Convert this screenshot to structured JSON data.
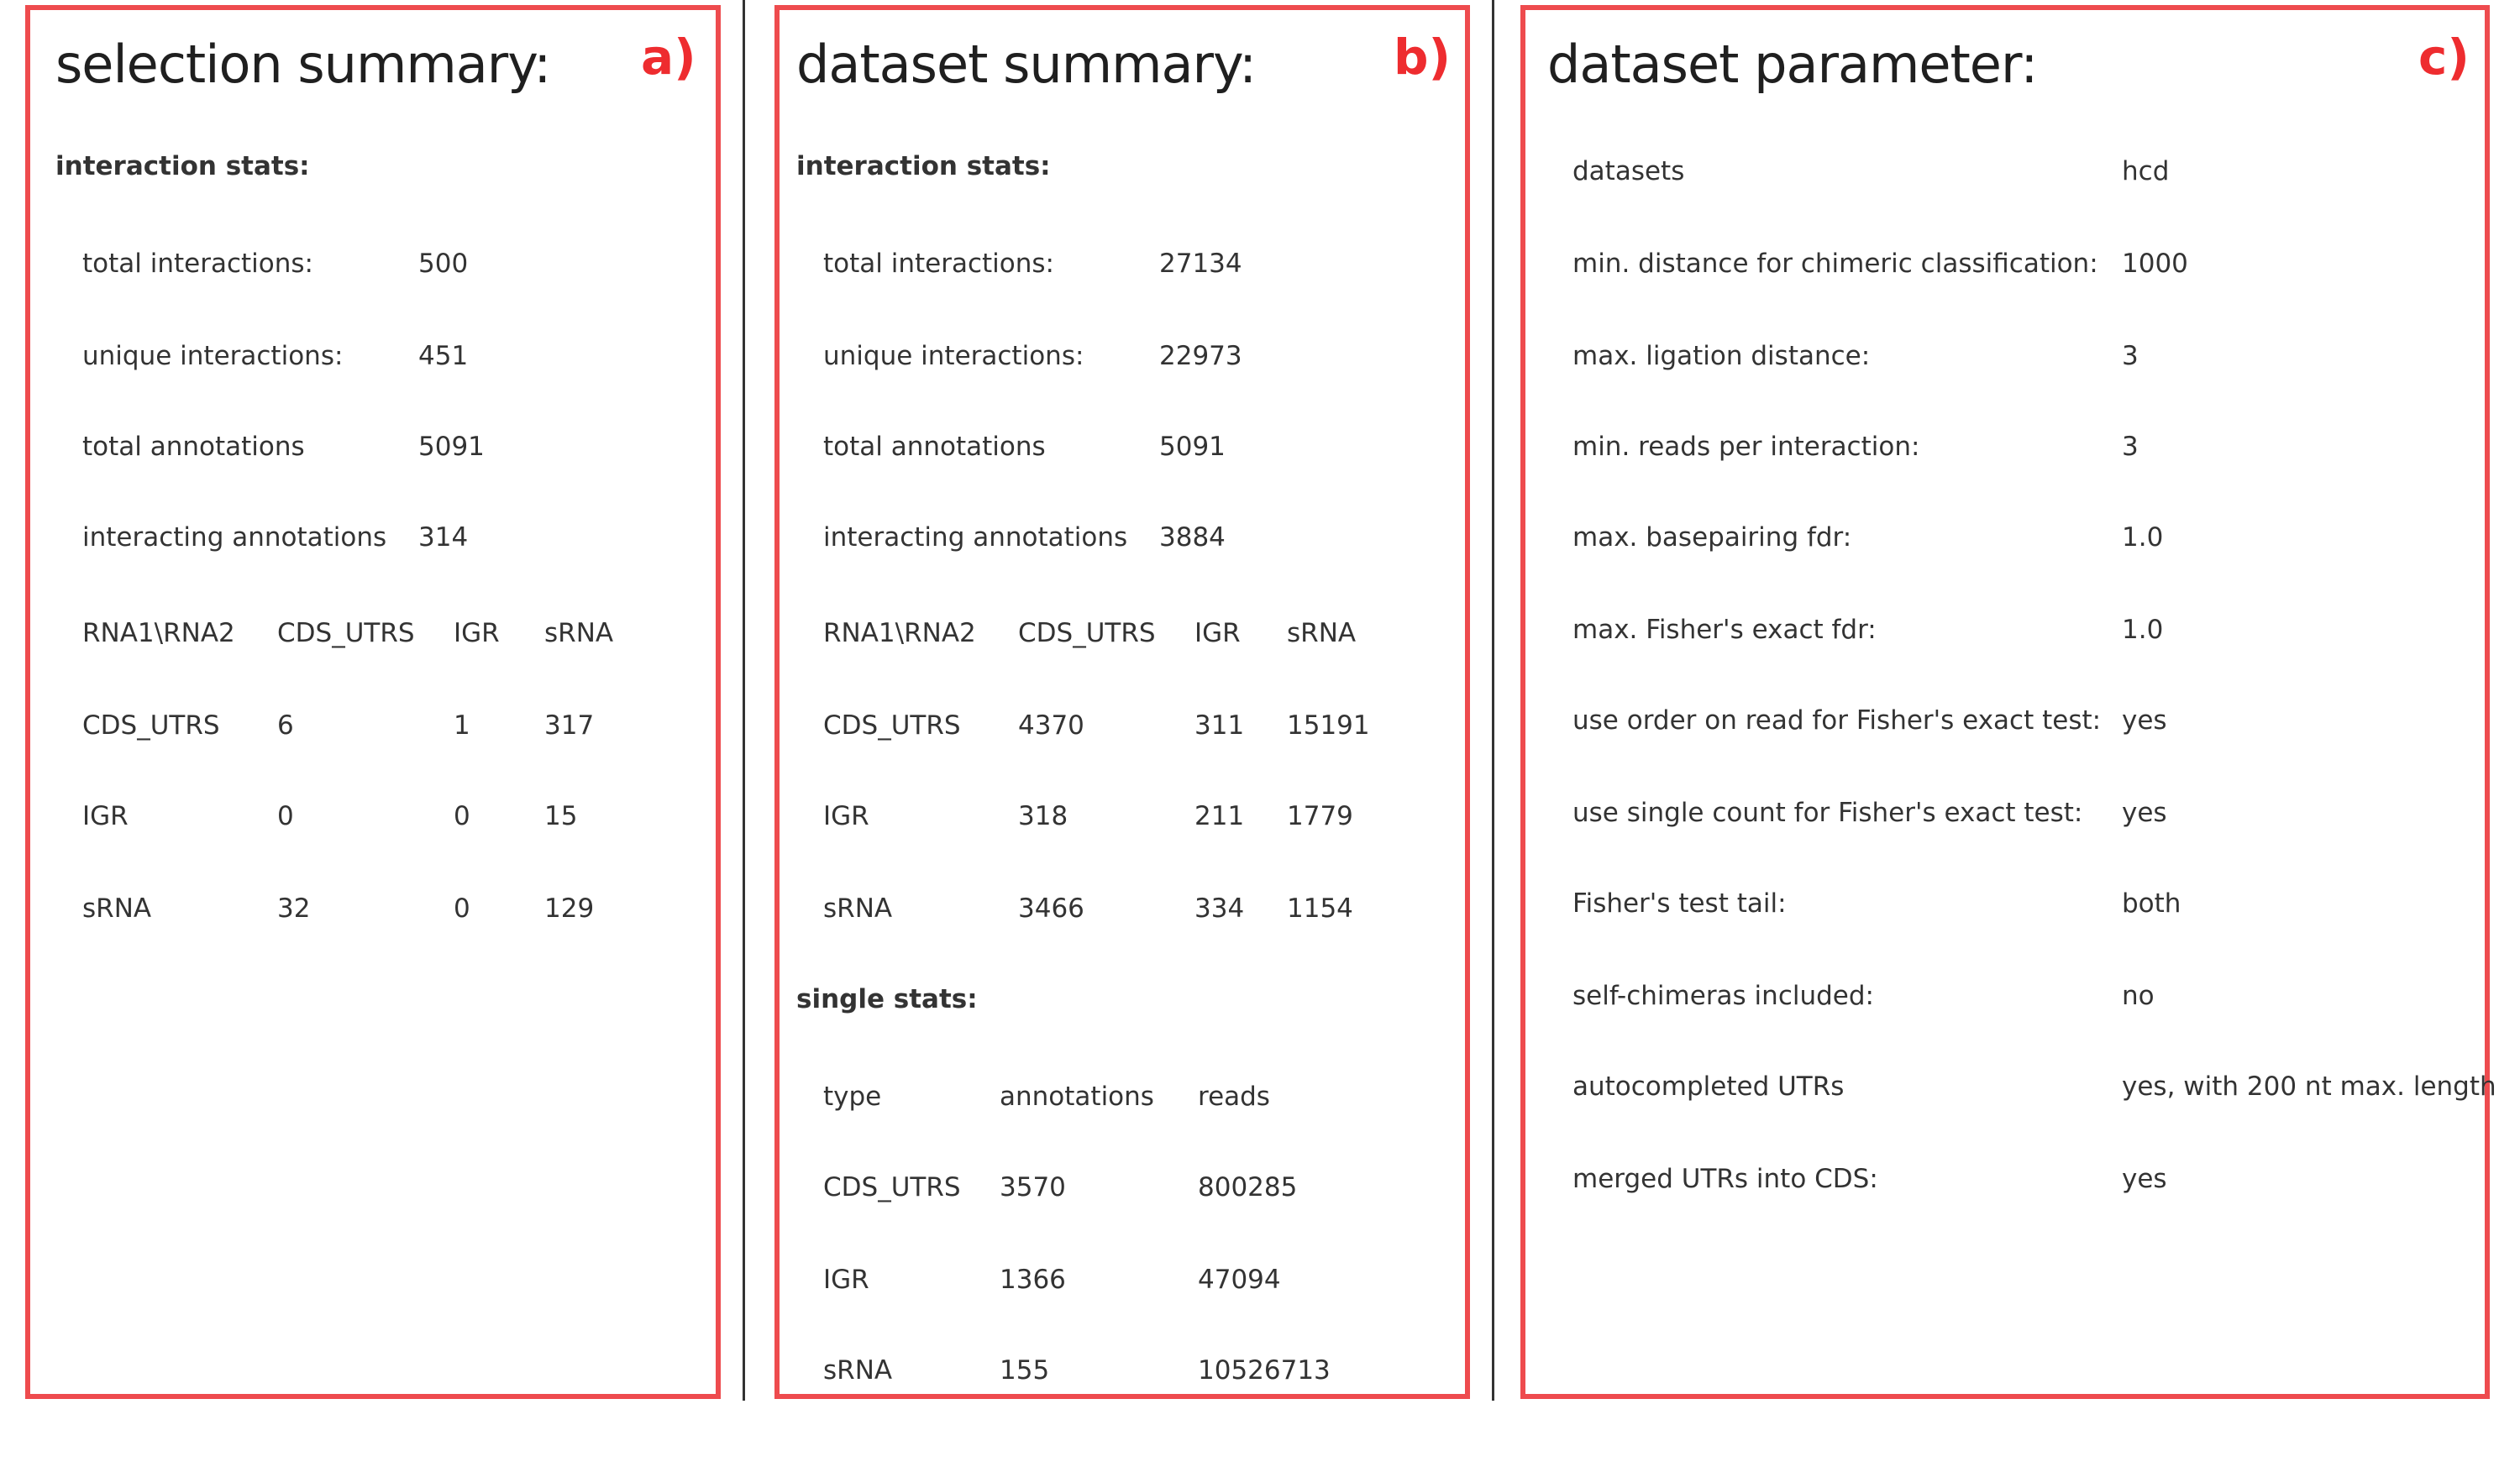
{
  "selection_summary": {
    "title": "selection summary:",
    "label": "a)",
    "interaction_stats_label": "interaction stats:",
    "stats": [
      {
        "name": "total interactions:",
        "value": "500"
      },
      {
        "name": "unique interactions:",
        "value": "451"
      },
      {
        "name": "total annotations",
        "value": "5091"
      },
      {
        "name": "interacting annotations",
        "value": "314"
      }
    ],
    "matrix": {
      "header": [
        "RNA1\\RNA2",
        "CDS_UTRS",
        "IGR",
        "sRNA"
      ],
      "rows": [
        [
          "CDS_UTRS",
          "6",
          "1",
          "317"
        ],
        [
          "IGR",
          "0",
          "0",
          "15"
        ],
        [
          "sRNA",
          "32",
          "0",
          "129"
        ]
      ]
    }
  },
  "dataset_summary": {
    "title": "dataset summary:",
    "label": "b)",
    "interaction_stats_label": "interaction stats:",
    "stats": [
      {
        "name": "total interactions:",
        "value": "27134"
      },
      {
        "name": "unique interactions:",
        "value": "22973"
      },
      {
        "name": "total annotations",
        "value": "5091"
      },
      {
        "name": "interacting annotations",
        "value": "3884"
      }
    ],
    "matrix": {
      "header": [
        "RNA1\\RNA2",
        "CDS_UTRS",
        "IGR",
        "sRNA"
      ],
      "rows": [
        [
          "CDS_UTRS",
          "4370",
          "311",
          "15191"
        ],
        [
          "IGR",
          "318",
          "211",
          "1779"
        ],
        [
          "sRNA",
          "3466",
          "334",
          "1154"
        ]
      ]
    },
    "single_stats_label": "single stats:",
    "single": {
      "header": [
        "type",
        "annotations",
        "reads"
      ],
      "rows": [
        [
          "CDS_UTRS",
          "3570",
          "800285"
        ],
        [
          "IGR",
          "1366",
          "47094"
        ],
        [
          "sRNA",
          "155",
          "10526713"
        ]
      ]
    }
  },
  "dataset_parameter": {
    "title": "dataset parameter:",
    "label": "c)",
    "params": [
      {
        "name": "datasets",
        "value": "hcd"
      },
      {
        "name": "min. distance for chimeric classification:",
        "value": "1000"
      },
      {
        "name": "max. ligation distance:",
        "value": "3"
      },
      {
        "name": "min. reads per interaction:",
        "value": "3"
      },
      {
        "name": "max. basepairing fdr:",
        "value": "1.0"
      },
      {
        "name": "max. Fisher's exact fdr:",
        "value": "1.0"
      },
      {
        "name": "use order on read for Fisher's exact test:",
        "value": "yes"
      },
      {
        "name": "use single count for Fisher's exact test:",
        "value": "yes"
      },
      {
        "name": "Fisher's test tail:",
        "value": "both"
      },
      {
        "name": "self-chimeras included:",
        "value": "no"
      },
      {
        "name": "autocompleted UTRs",
        "value": "yes, with 200 nt max. length"
      },
      {
        "name": "merged UTRs into CDS:",
        "value": "yes"
      }
    ]
  }
}
